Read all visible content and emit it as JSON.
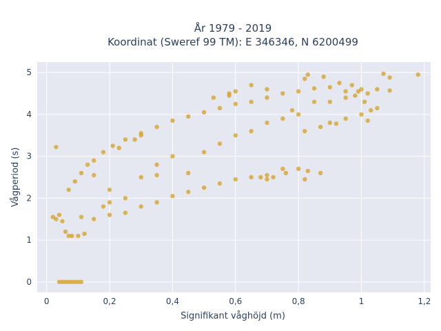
{
  "chart_data": {
    "type": "scatter",
    "title": [
      "År 1979 - 2019",
      "Koordinat (Sweref 99 TM): E 346346, N 6200499"
    ],
    "xlabel": "Signifikant våghöjd (m)",
    "ylabel": "Vågperiod (s)",
    "xlim": [
      -0.03,
      1.22
    ],
    "ylim": [
      -0.25,
      5.25
    ],
    "xticks": [
      0,
      0.2,
      0.4,
      0.6,
      0.8,
      1,
      1.2
    ],
    "xtick_labels": [
      "0",
      "0,2",
      "0,4",
      "0,6",
      "0,8",
      "1",
      "1,2"
    ],
    "yticks": [
      0,
      1,
      2,
      3,
      4,
      5
    ],
    "ytick_labels": [
      "0",
      "1",
      "2",
      "3",
      "4",
      "5"
    ],
    "grid": true,
    "plot_background": "#e5e8f1",
    "marker_color": "#d4a020",
    "series": [
      {
        "points": [
          [
            0.04,
            0
          ],
          [
            0.05,
            0
          ],
          [
            0.06,
            0
          ],
          [
            0.07,
            0
          ],
          [
            0.08,
            0
          ],
          [
            0.09,
            0
          ],
          [
            0.1,
            0
          ],
          [
            0.11,
            0
          ],
          [
            0.03,
            3.22
          ],
          [
            0.02,
            1.55
          ],
          [
            0.03,
            1.5
          ],
          [
            0.04,
            1.6
          ],
          [
            0.05,
            1.45
          ],
          [
            0.06,
            1.2
          ],
          [
            0.07,
            1.1
          ],
          [
            0.08,
            1.1
          ],
          [
            0.1,
            1.1
          ],
          [
            0.12,
            1.15
          ],
          [
            0.07,
            2.2
          ],
          [
            0.09,
            2.4
          ],
          [
            0.11,
            2.6
          ],
          [
            0.13,
            2.8
          ],
          [
            0.15,
            2.9
          ],
          [
            0.18,
            3.1
          ],
          [
            0.21,
            3.25
          ],
          [
            0.25,
            3.4
          ],
          [
            0.3,
            3.55
          ],
          [
            0.35,
            3.7
          ],
          [
            0.4,
            3.85
          ],
          [
            0.45,
            3.95
          ],
          [
            0.5,
            4.05
          ],
          [
            0.55,
            4.15
          ],
          [
            0.6,
            4.25
          ],
          [
            0.65,
            4.3
          ],
          [
            0.7,
            4.4
          ],
          [
            0.75,
            4.5
          ],
          [
            0.8,
            4.55
          ],
          [
            0.85,
            4.62
          ],
          [
            0.9,
            4.65
          ],
          [
            0.95,
            4.55
          ],
          [
            1.0,
            4.6
          ],
          [
            0.15,
            1.5
          ],
          [
            0.2,
            1.6
          ],
          [
            0.25,
            1.65
          ],
          [
            0.3,
            1.8
          ],
          [
            0.35,
            1.9
          ],
          [
            0.4,
            2.05
          ],
          [
            0.45,
            2.15
          ],
          [
            0.5,
            2.25
          ],
          [
            0.55,
            2.35
          ],
          [
            0.6,
            2.45
          ],
          [
            0.65,
            2.5
          ],
          [
            0.7,
            2.55
          ],
          [
            0.2,
            2.2
          ],
          [
            0.3,
            2.5
          ],
          [
            0.35,
            2.55
          ],
          [
            0.82,
            3.6
          ],
          [
            0.87,
            3.7
          ],
          [
            0.9,
            3.8
          ],
          [
            0.95,
            3.9
          ],
          [
            1.0,
            4.0
          ],
          [
            1.03,
            4.1
          ],
          [
            0.85,
            4.3
          ],
          [
            0.9,
            4.3
          ],
          [
            0.95,
            4.4
          ],
          [
            0.98,
            4.45
          ],
          [
            1.01,
            4.3
          ],
          [
            1.07,
            4.97
          ],
          [
            1.09,
            4.88
          ],
          [
            1.18,
            4.95
          ],
          [
            1.09,
            4.57
          ],
          [
            1.05,
            4.6
          ],
          [
            1.02,
            4.5
          ],
          [
            0.88,
            4.9
          ],
          [
            0.93,
            4.75
          ],
          [
            0.97,
            4.7
          ],
          [
            0.99,
            4.55
          ],
          [
            0.82,
            4.85
          ],
          [
            0.83,
            4.95
          ],
          [
            0.65,
            4.7
          ],
          [
            0.7,
            4.6
          ],
          [
            0.6,
            4.55
          ],
          [
            0.58,
            4.5
          ],
          [
            0.58,
            4.45
          ],
          [
            0.53,
            4.4
          ],
          [
            0.8,
            2.7
          ],
          [
            0.83,
            2.65
          ],
          [
            0.87,
            2.6
          ],
          [
            0.76,
            2.6
          ],
          [
            0.75,
            2.7
          ],
          [
            0.82,
            2.45
          ],
          [
            0.72,
            2.5
          ],
          [
            0.7,
            2.45
          ],
          [
            0.68,
            2.5
          ],
          [
            0.23,
            3.2
          ],
          [
            0.3,
            3.5
          ],
          [
            0.28,
            3.4
          ],
          [
            0.15,
            2.55
          ],
          [
            0.11,
            1.55
          ],
          [
            1.05,
            4.15
          ],
          [
            1.02,
            3.85
          ],
          [
            0.92,
            3.78
          ],
          [
            0.78,
            4.1
          ],
          [
            0.8,
            4.0
          ],
          [
            0.4,
            3.0
          ],
          [
            0.35,
            2.8
          ],
          [
            0.5,
            3.1
          ],
          [
            0.55,
            3.3
          ],
          [
            0.45,
            2.6
          ],
          [
            0.25,
            2.0
          ],
          [
            0.2,
            1.9
          ],
          [
            0.18,
            1.8
          ],
          [
            0.6,
            3.5
          ],
          [
            0.65,
            3.6
          ],
          [
            0.7,
            3.8
          ],
          [
            0.75,
            3.9
          ]
        ]
      }
    ]
  }
}
